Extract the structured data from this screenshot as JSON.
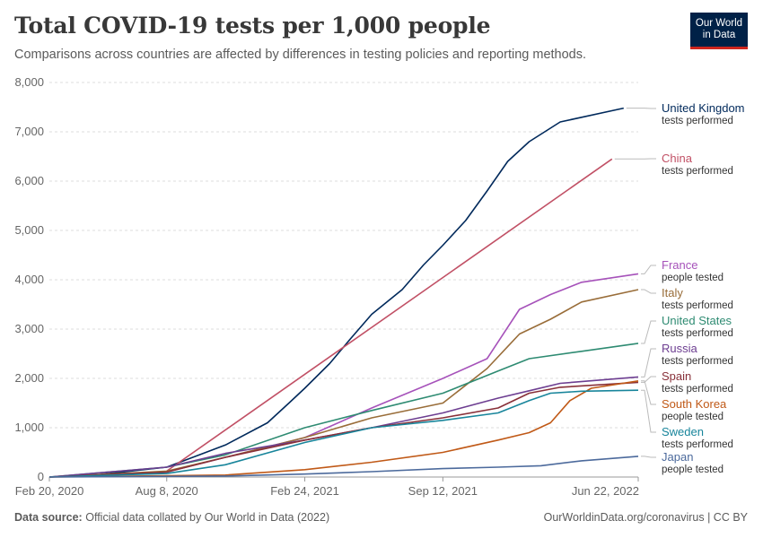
{
  "header": {
    "title": "Total COVID-19 tests per 1,000 people",
    "subtitle": "Comparisons across countries are affected by differences in testing policies and reporting methods."
  },
  "logo": {
    "line1": "Our World",
    "line2": "in Data"
  },
  "footer": {
    "source_label": "Data source:",
    "source_text": "Official data collated by Our World in Data (2022)",
    "right_text": "OurWorldinData.org/coronavirus | CC BY"
  },
  "chart_data": {
    "type": "line",
    "title": "Total COVID-19 tests per 1,000 people",
    "x_ticks": [
      "Feb 20, 2020",
      "Aug 8, 2020",
      "Feb 24, 2021",
      "Sep 12, 2021",
      "Jun 22, 2022"
    ],
    "x_range": [
      "2020-02-20",
      "2022-06-22"
    ],
    "y_ticks": [
      0,
      1000,
      2000,
      3000,
      4000,
      5000,
      6000,
      7000,
      8000
    ],
    "y_tick_labels": [
      "0",
      "1,000",
      "2,000",
      "3,000",
      "4,000",
      "5,000",
      "6,000",
      "7,000",
      "8,000"
    ],
    "ylim": [
      0,
      8000
    ],
    "grid": "horizontal dashed",
    "legend": "right (line-end labels)",
    "series": [
      {
        "name": "United Kingdom",
        "metric": "tests performed",
        "color": "#00295b",
        "points": [
          [
            "2020-02-20",
            0
          ],
          [
            "2020-05-01",
            50
          ],
          [
            "2020-08-08",
            200
          ],
          [
            "2020-11-01",
            650
          ],
          [
            "2021-01-01",
            1100
          ],
          [
            "2021-02-01",
            1500
          ],
          [
            "2021-02-24",
            1800
          ],
          [
            "2021-04-01",
            2300
          ],
          [
            "2021-05-01",
            2800
          ],
          [
            "2021-06-01",
            3300
          ],
          [
            "2021-07-15",
            3800
          ],
          [
            "2021-08-15",
            4300
          ],
          [
            "2021-09-12",
            4700
          ],
          [
            "2021-10-15",
            5200
          ],
          [
            "2021-11-15",
            5800
          ],
          [
            "2021-12-15",
            6400
          ],
          [
            "2022-01-15",
            6800
          ],
          [
            "2022-03-01",
            7200
          ],
          [
            "2022-06-01",
            7480
          ]
        ]
      },
      {
        "name": "China",
        "metric": "tests performed",
        "color": "#c15065",
        "points": [
          [
            "2020-08-08",
            120
          ],
          [
            "2022-05-15",
            6450
          ]
        ]
      },
      {
        "name": "France",
        "metric": "people tested",
        "color": "#a652ba",
        "points": [
          [
            "2020-02-20",
            0
          ],
          [
            "2020-08-08",
            100
          ],
          [
            "2020-11-01",
            400
          ],
          [
            "2021-02-24",
            800
          ],
          [
            "2021-06-01",
            1400
          ],
          [
            "2021-09-12",
            2000
          ],
          [
            "2021-11-15",
            2400
          ],
          [
            "2022-01-01",
            3400
          ],
          [
            "2022-02-15",
            3700
          ],
          [
            "2022-04-01",
            3950
          ],
          [
            "2022-06-22",
            4120
          ]
        ]
      },
      {
        "name": "Italy",
        "metric": "tests performed",
        "color": "#996d39",
        "points": [
          [
            "2020-02-20",
            0
          ],
          [
            "2020-08-08",
            120
          ],
          [
            "2020-11-01",
            400
          ],
          [
            "2021-02-24",
            800
          ],
          [
            "2021-06-01",
            1200
          ],
          [
            "2021-09-12",
            1500
          ],
          [
            "2021-11-15",
            2200
          ],
          [
            "2022-01-01",
            2900
          ],
          [
            "2022-02-15",
            3200
          ],
          [
            "2022-04-01",
            3550
          ],
          [
            "2022-06-22",
            3800
          ]
        ]
      },
      {
        "name": "United States",
        "metric": "tests performed",
        "color": "#2e8b72",
        "points": [
          [
            "2020-02-20",
            0
          ],
          [
            "2020-08-08",
            200
          ],
          [
            "2020-11-01",
            450
          ],
          [
            "2021-02-24",
            1000
          ],
          [
            "2021-06-01",
            1350
          ],
          [
            "2021-09-12",
            1700
          ],
          [
            "2021-12-01",
            2150
          ],
          [
            "2022-01-15",
            2400
          ],
          [
            "2022-04-01",
            2550
          ],
          [
            "2022-06-22",
            2710
          ]
        ]
      },
      {
        "name": "Russia",
        "metric": "tests performed",
        "color": "#6d3e91",
        "points": [
          [
            "2020-02-20",
            0
          ],
          [
            "2020-08-08",
            200
          ],
          [
            "2020-11-01",
            480
          ],
          [
            "2021-02-24",
            750
          ],
          [
            "2021-06-01",
            1000
          ],
          [
            "2021-09-12",
            1300
          ],
          [
            "2021-12-01",
            1600
          ],
          [
            "2022-01-15",
            1750
          ],
          [
            "2022-03-01",
            1900
          ],
          [
            "2022-06-22",
            2030
          ]
        ]
      },
      {
        "name": "Spain",
        "metric": "tests performed",
        "color": "#883039",
        "points": [
          [
            "2020-02-20",
            0
          ],
          [
            "2020-08-08",
            100
          ],
          [
            "2020-11-01",
            400
          ],
          [
            "2021-02-24",
            750
          ],
          [
            "2021-06-01",
            1000
          ],
          [
            "2021-09-12",
            1200
          ],
          [
            "2021-12-01",
            1400
          ],
          [
            "2022-01-15",
            1700
          ],
          [
            "2022-03-01",
            1820
          ],
          [
            "2022-06-22",
            1920
          ]
        ]
      },
      {
        "name": "South Korea",
        "metric": "people tested",
        "color": "#c05917",
        "points": [
          [
            "2020-02-20",
            0
          ],
          [
            "2020-11-01",
            40
          ],
          [
            "2021-02-24",
            150
          ],
          [
            "2021-06-01",
            300
          ],
          [
            "2021-09-12",
            500
          ],
          [
            "2021-12-01",
            750
          ],
          [
            "2022-01-15",
            900
          ],
          [
            "2022-02-15",
            1100
          ],
          [
            "2022-03-15",
            1550
          ],
          [
            "2022-04-15",
            1800
          ],
          [
            "2022-06-22",
            1950
          ]
        ]
      },
      {
        "name": "Sweden",
        "metric": "tests performed",
        "color": "#18859b",
        "points": [
          [
            "2020-02-20",
            0
          ],
          [
            "2020-08-08",
            70
          ],
          [
            "2020-11-01",
            250
          ],
          [
            "2021-02-24",
            700
          ],
          [
            "2021-06-01",
            1000
          ],
          [
            "2021-09-12",
            1150
          ],
          [
            "2021-12-01",
            1300
          ],
          [
            "2022-01-15",
            1550
          ],
          [
            "2022-02-15",
            1700
          ],
          [
            "2022-04-01",
            1740
          ],
          [
            "2022-06-22",
            1760
          ]
        ]
      },
      {
        "name": "Japan",
        "metric": "people tested",
        "color": "#4c6a9c",
        "points": [
          [
            "2020-02-20",
            0
          ],
          [
            "2020-11-01",
            20
          ],
          [
            "2021-02-24",
            60
          ],
          [
            "2021-06-01",
            110
          ],
          [
            "2021-09-12",
            170
          ],
          [
            "2021-12-01",
            200
          ],
          [
            "2022-02-01",
            230
          ],
          [
            "2022-04-01",
            330
          ],
          [
            "2022-06-22",
            420
          ]
        ]
      }
    ]
  }
}
